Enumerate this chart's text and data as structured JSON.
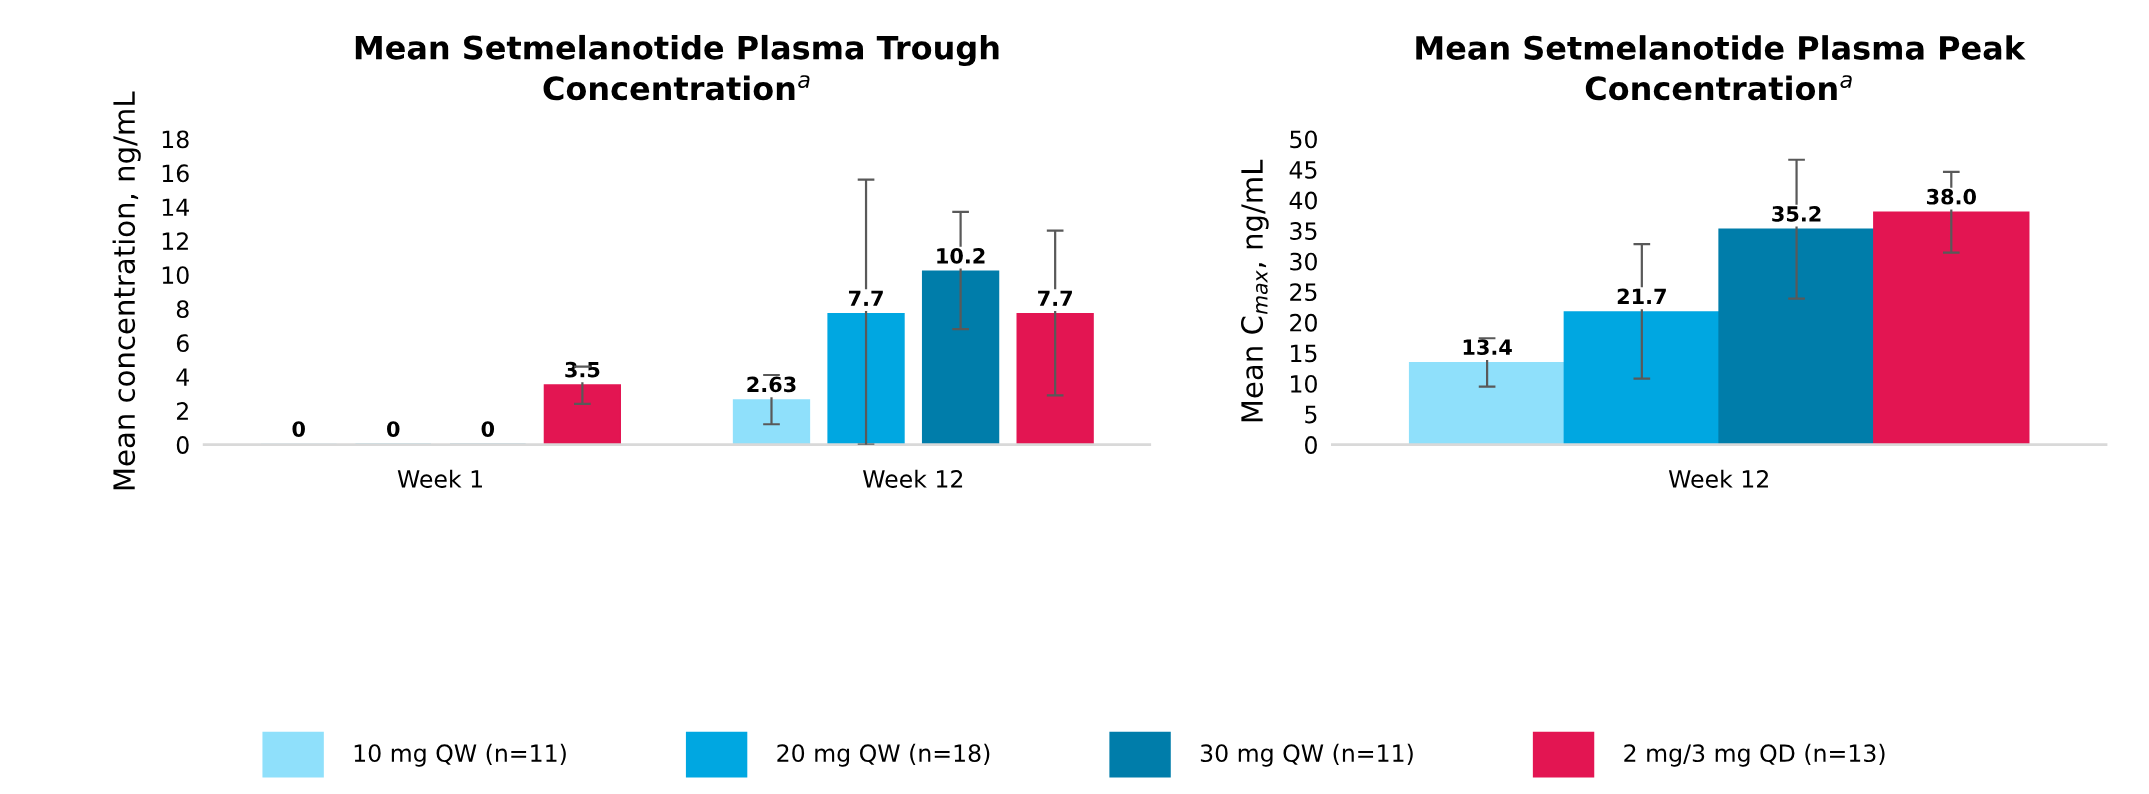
{
  "chart_data": [
    {
      "type": "bar",
      "title": "Mean Setmelanotide Plasma Trough Concentration$^{a}$",
      "ylabel": "Mean concentration, ng/mL",
      "categories": [
        "Week 1",
        "Week 12"
      ],
      "ylim": [
        0,
        18
      ],
      "yticks": [
        0,
        2,
        4,
        6,
        8,
        10,
        12,
        14,
        16,
        18
      ],
      "grid": false,
      "legend": "bottom",
      "series": [
        {
          "name": "10 mg QW (n=11)",
          "color": "#8fe0fb",
          "values": [
            0,
            2.63
          ],
          "value_labels": [
            "0",
            "2.63"
          ],
          "errors": [
            null,
            [
              1.2,
              4.1
            ]
          ]
        },
        {
          "name": "20 mg QW (n=18)",
          "color": "#00a7e1",
          "values": [
            0,
            7.7
          ],
          "value_labels": [
            "0",
            "7.7"
          ],
          "errors": [
            null,
            [
              0,
              15.6
            ]
          ]
        },
        {
          "name": "30 mg QW (n=11)",
          "color": "#007daa",
          "values": [
            0,
            10.2
          ],
          "value_labels": [
            "0",
            "10.2"
          ],
          "errors": [
            null,
            [
              6.8,
              13.7
            ]
          ]
        },
        {
          "name": "2 mg/3 mg QD (n=13)",
          "color": "#e31552",
          "values": [
            3.5,
            7.7
          ],
          "value_labels": [
            "3.5",
            "7.7"
          ],
          "errors": [
            [
              2.4,
              4.6
            ],
            [
              2.9,
              12.6
            ]
          ]
        }
      ]
    },
    {
      "type": "bar",
      "title": "Mean Setmelanotide Plasma Peak Concentration$^{a}$",
      "ylabel": "Mean C$_{max}$, ng/mL",
      "categories": [
        "Week 12"
      ],
      "ylim": [
        0,
        50
      ],
      "yticks": [
        0,
        5,
        10,
        15,
        20,
        25,
        30,
        35,
        40,
        45,
        50
      ],
      "grid": false,
      "series": [
        {
          "color": "#8fe0fb",
          "values": [
            13.4
          ],
          "value_labels": [
            "13.4"
          ],
          "errors": [
            [
              9.5,
              17.4
            ]
          ]
        },
        {
          "color": "#00a7e1",
          "values": [
            21.7
          ],
          "value_labels": [
            "21.7"
          ],
          "errors": [
            [
              10.8,
              32.8
            ]
          ]
        },
        {
          "color": "#007daa",
          "values": [
            35.2
          ],
          "value_labels": [
            "35.2"
          ],
          "errors": [
            [
              23.9,
              46.6
            ]
          ]
        },
        {
          "color": "#e31552",
          "values": [
            38.0
          ],
          "value_labels": [
            "38.0"
          ],
          "errors": [
            [
              31.4,
              44.6
            ]
          ]
        }
      ]
    }
  ]
}
